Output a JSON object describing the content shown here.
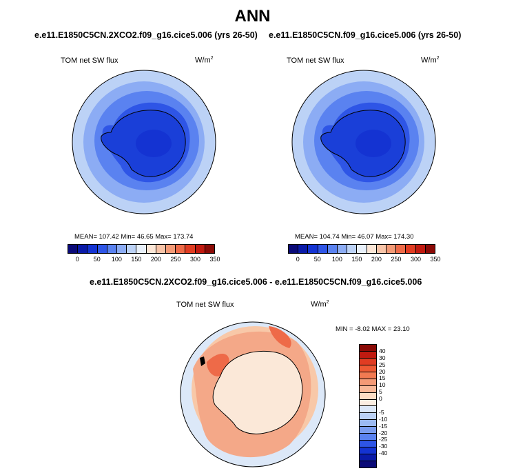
{
  "title": "ANN",
  "panels": [
    {
      "case_title": "e.e11.E1850C5CN.2XCO2.f09_g16.cice5.006 (yrs 26-50)",
      "var_label": "TOM net SW flux",
      "units": "W/m",
      "units_sup": "2",
      "stats": "MEAN= 107.42  Min= 46.65  Max= 173.74"
    },
    {
      "case_title": "e.e11.E1850C5CN.f09_g16.cice5.006 (yrs 26-50)",
      "var_label": "TOM net SW flux",
      "units": "W/m",
      "units_sup": "2",
      "stats": "MEAN= 104.74  Min= 46.07  Max= 174.30"
    }
  ],
  "diff_panel": {
    "case_title": "e.e11.E1850C5CN.2XCO2.f09_g16.cice5.006 - e.e11.E1850C5CN.f09_g16.cice5.006",
    "var_label": "TOM net SW flux",
    "units": "W/m",
    "units_sup": "2",
    "stats": "MIN = -8.02 MAX =  23.10"
  },
  "colorbar": {
    "colors": [
      "#0a0a78",
      "#0a1aa8",
      "#1433d2",
      "#2e55e6",
      "#5a82f0",
      "#8cacf4",
      "#bcd2f6",
      "#e8f0fa",
      "#fce6d6",
      "#f8c4a8",
      "#f49a76",
      "#ee6a48",
      "#e03c22",
      "#c01a10",
      "#8a0a06"
    ],
    "ticks": [
      "0",
      "50",
      "100",
      "150",
      "200",
      "250",
      "300",
      "350"
    ]
  },
  "diff_colorbar": {
    "colors": [
      "#8a0a06",
      "#c01a10",
      "#e03c22",
      "#ee5a34",
      "#f27a52",
      "#f49a76",
      "#f8b898",
      "#fcdcc4",
      "#fbeee2",
      "#dce8f8",
      "#bcd2f6",
      "#9cbaf2",
      "#7a9cee",
      "#5a82f0",
      "#2e55e6",
      "#1433d2",
      "#0a1aa8",
      "#0a0a78"
    ],
    "ticks": [
      "40",
      "30",
      "25",
      "20",
      "15",
      "10",
      "5",
      "0",
      "-5",
      "-10",
      "-15",
      "-20",
      "-25",
      "-30",
      "-40"
    ]
  }
}
